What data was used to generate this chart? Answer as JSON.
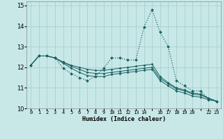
{
  "xlabel": "Humidex (Indice chaleur)",
  "background_color": "#c8e8e8",
  "grid_color": "#a8d0d0",
  "line_color": "#1a6060",
  "xlim": [
    -0.5,
    23.5
  ],
  "ylim": [
    10,
    15.2
  ],
  "yticks": [
    10,
    11,
    12,
    13,
    14,
    15
  ],
  "xtick_positions": [
    0,
    1,
    2,
    3,
    4,
    5,
    6,
    7,
    8,
    9,
    10,
    11,
    12,
    13,
    14,
    15,
    16,
    17,
    18,
    19,
    20,
    21,
    22,
    23
  ],
  "xtick_labels": [
    "0",
    "1",
    "2",
    "3",
    "4",
    "5",
    "6",
    "7",
    "8",
    "9",
    "10",
    "11",
    "12",
    "13",
    "14",
    "",
    "16",
    "17",
    "18",
    "19",
    "20",
    "",
    "22",
    "23"
  ],
  "series": [
    {
      "y": [
        12.1,
        12.55,
        12.55,
        12.45,
        11.95,
        11.7,
        11.5,
        11.35,
        11.55,
        11.95,
        12.45,
        12.45,
        12.35,
        12.35,
        13.95,
        14.8,
        13.7,
        13.0,
        11.35,
        11.1,
        10.85,
        10.85,
        10.45,
        10.35
      ],
      "linestyle": ":",
      "linewidth": 0.9,
      "marker": "D",
      "markersize": 2.0
    },
    {
      "y": [
        12.1,
        12.55,
        12.55,
        12.45,
        12.25,
        12.1,
        12.0,
        11.9,
        11.85,
        11.85,
        11.9,
        11.95,
        12.0,
        12.05,
        12.1,
        12.15,
        11.55,
        11.25,
        11.0,
        10.9,
        10.75,
        10.7,
        10.5,
        10.35
      ],
      "linestyle": "-",
      "linewidth": 0.7,
      "marker": "D",
      "markersize": 1.6
    },
    {
      "y": [
        12.1,
        12.55,
        12.55,
        12.45,
        12.25,
        12.05,
        11.9,
        11.75,
        11.7,
        11.7,
        11.75,
        11.8,
        11.85,
        11.9,
        11.95,
        12.0,
        11.45,
        11.2,
        10.95,
        10.85,
        10.7,
        10.65,
        10.48,
        10.35
      ],
      "linestyle": "-",
      "linewidth": 0.7,
      "marker": "D",
      "markersize": 1.6
    },
    {
      "y": [
        12.1,
        12.55,
        12.55,
        12.45,
        12.2,
        11.95,
        11.75,
        11.6,
        11.55,
        11.55,
        11.65,
        11.7,
        11.75,
        11.8,
        11.85,
        11.9,
        11.35,
        11.1,
        10.85,
        10.75,
        10.6,
        10.55,
        10.42,
        10.35
      ],
      "linestyle": "-",
      "linewidth": 0.7,
      "marker": "D",
      "markersize": 1.6
    }
  ]
}
